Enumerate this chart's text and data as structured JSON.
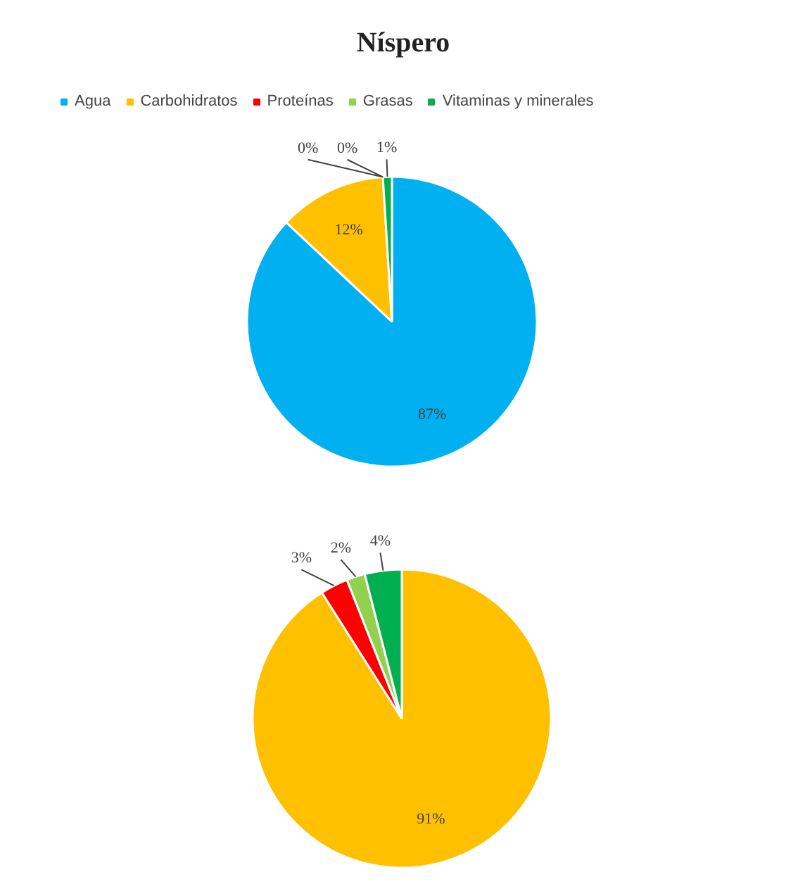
{
  "chart_data": [
    {
      "type": "pie",
      "title": "Níspero",
      "categories": [
        "Agua",
        "Carbohidratos",
        "Proteínas",
        "Grasas",
        "Vitaminas y minerales"
      ],
      "values": [
        87,
        12,
        0,
        0,
        1
      ],
      "colors": [
        "#00b0f0",
        "#ffc000",
        "#ff0000",
        "#92d050",
        "#00b050"
      ],
      "legend": "top",
      "value_labels": [
        "87%",
        "12%",
        "0%",
        "0%",
        "1%"
      ]
    },
    {
      "type": "pie",
      "categories": [
        null,
        null,
        null,
        null
      ],
      "values": [
        91,
        3,
        2,
        4
      ],
      "colors": [
        "#ffc000",
        "#ff0000",
        "#92d050",
        "#00b050"
      ],
      "value_labels": [
        "91%",
        "3%",
        "2%",
        "4%"
      ]
    }
  ]
}
